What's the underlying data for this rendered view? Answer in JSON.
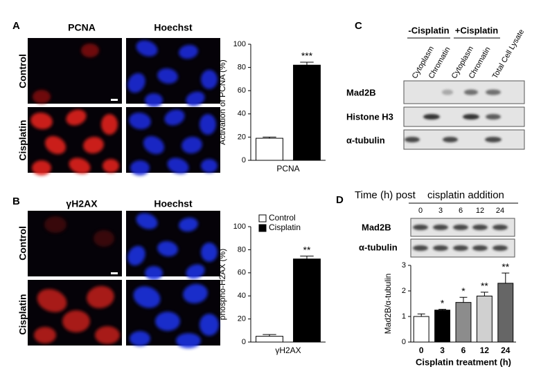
{
  "panels": [
    {
      "label": "A",
      "columns": [
        "PCNA",
        "Hoechst"
      ],
      "rows": [
        "Control",
        "Cisplatin"
      ]
    },
    {
      "label": "B",
      "columns": [
        "γH2AX",
        "Hoechst"
      ],
      "rows": [
        "Control",
        "Cisplatin"
      ]
    },
    {
      "label": "C",
      "groups": [
        "-Cisplatin",
        "+Cisplatin"
      ],
      "lanes": [
        "Cytoplasm",
        "Chromatin",
        "Cytoplasm",
        "Chromatin",
        "Total Cell Lysate"
      ],
      "blots": [
        "Mad2B",
        "Histone H3",
        "α-tubulin"
      ]
    },
    {
      "label": "D",
      "time_header": [
        "Time (h) post",
        "cisplatin addition"
      ],
      "times": [
        "0",
        "3",
        "6",
        "12",
        "24"
      ],
      "blots": [
        "Mad2B",
        "α-tubulin"
      ]
    }
  ],
  "chart_data": [
    {
      "type": "bar",
      "y_label": "Activation of PCNA (%)",
      "categories": [
        "PCNA"
      ],
      "series": [
        {
          "color": "#ffffff",
          "values": [
            19
          ],
          "errors": [
            1
          ]
        },
        {
          "color": "#000000",
          "values": [
            82
          ],
          "errors": [
            2.5
          ],
          "significance": [
            "***"
          ]
        }
      ],
      "ylim": [
        0,
        100
      ],
      "yticks": [
        0,
        20,
        40,
        60,
        80,
        100
      ],
      "legend": false
    },
    {
      "type": "bar",
      "y_label": "phospho-H2AX (%)",
      "categories": [
        "γH2AX"
      ],
      "series": [
        {
          "name": "Control",
          "color": "#ffffff",
          "values": [
            5
          ],
          "errors": [
            1.5
          ]
        },
        {
          "name": "Cisplatin",
          "color": "#000000",
          "values": [
            72
          ],
          "errors": [
            2.5
          ],
          "significance": [
            "**"
          ]
        }
      ],
      "ylim": [
        0,
        100
      ],
      "yticks": [
        0,
        20,
        40,
        60,
        80,
        100
      ],
      "legend": "upper left"
    },
    {
      "type": "bar",
      "y_label": "Mad2B/α-tubulin",
      "x_label": "Cisplatin treatment (h)",
      "categories": [
        "0",
        "3",
        "6",
        "12",
        "24"
      ],
      "values": [
        1.0,
        1.25,
        1.55,
        1.8,
        2.3
      ],
      "errors": [
        0.1,
        0.03,
        0.2,
        0.15,
        0.4
      ],
      "colors": [
        "#ffffff",
        "#000000",
        "#8c8c8c",
        "#d0d0d0",
        "#666666"
      ],
      "significance": [
        null,
        "*",
        "*",
        "**",
        "**"
      ],
      "ylim": [
        0,
        3
      ],
      "yticks": [
        0,
        1,
        2,
        3
      ],
      "legend": false
    }
  ]
}
